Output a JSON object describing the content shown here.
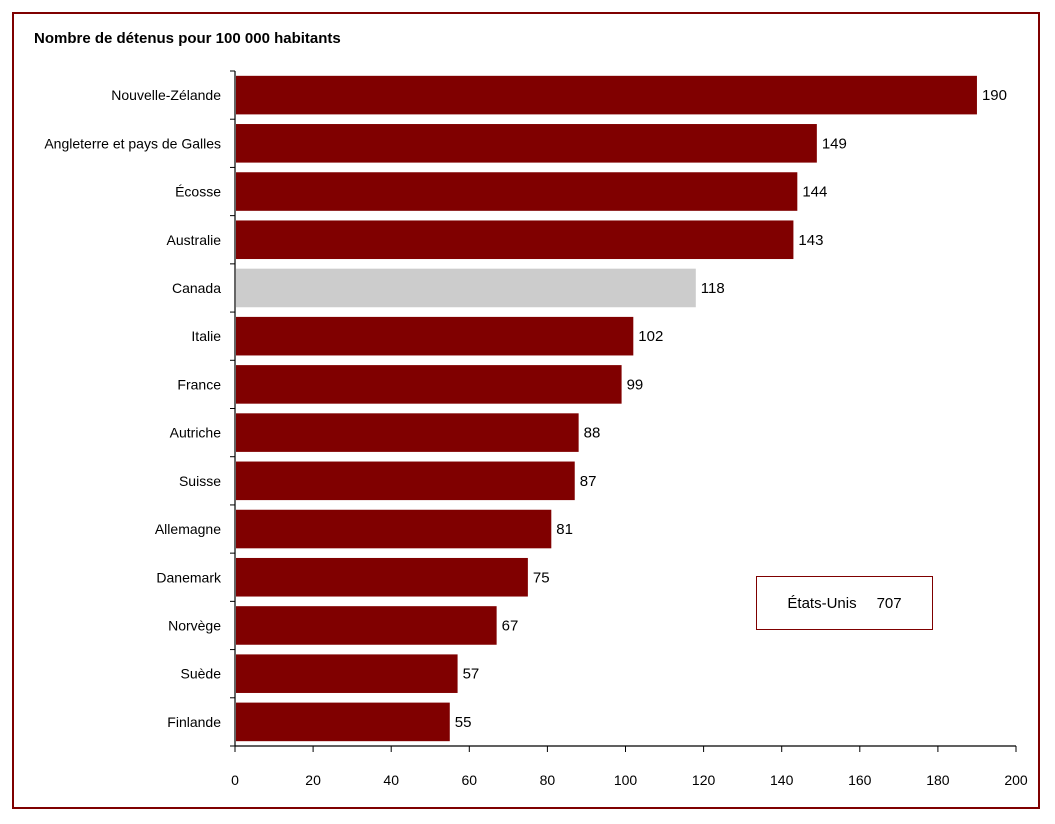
{
  "chart_data": {
    "type": "bar",
    "orientation": "horizontal",
    "title": "Nombre de détenus pour 100 000 habitants",
    "categories": [
      "Nouvelle-Zélande",
      "Angleterre et pays de Galles",
      "Écosse",
      "Australie",
      "Canada",
      "Italie",
      "France",
      "Autriche",
      "Suisse",
      "Allemagne",
      "Danemark",
      "Norvège",
      "Suède",
      "Finlande"
    ],
    "values": [
      190,
      149,
      144,
      143,
      118,
      102,
      99,
      88,
      87,
      81,
      75,
      67,
      57,
      55
    ],
    "highlight_category": "Canada",
    "xlim": [
      0,
      200
    ],
    "xticks": [
      0,
      20,
      40,
      60,
      80,
      100,
      120,
      140,
      160,
      180,
      200
    ],
    "grid": false,
    "colors": {
      "bar": "#800000",
      "highlight": "#cccccc",
      "frame": "#7f0000"
    },
    "annotation": {
      "label": "États-Unis",
      "value": "707"
    }
  }
}
